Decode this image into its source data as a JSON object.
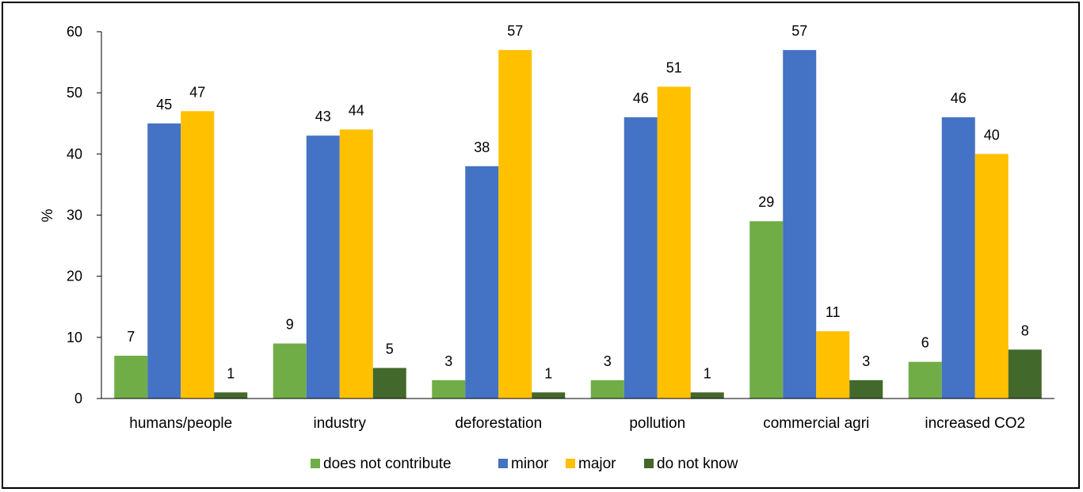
{
  "chart_data": {
    "type": "bar",
    "title": "",
    "xlabel": "",
    "ylabel": "%",
    "ylim": [
      0,
      60
    ],
    "yticks": [
      0,
      10,
      20,
      30,
      40,
      50,
      60
    ],
    "grid": false,
    "legend_position": "bottom",
    "categories": [
      "humans/people",
      "industry",
      "deforestation",
      "pollution",
      "commercial agri",
      "increased CO2"
    ],
    "series": [
      {
        "name": "does not contribute",
        "color": "#70ad47",
        "values": [
          7,
          9,
          3,
          3,
          29,
          6
        ]
      },
      {
        "name": "minor",
        "color": "#4472c4",
        "values": [
          45,
          43,
          38,
          46,
          57,
          46
        ]
      },
      {
        "name": "major",
        "color": "#ffc000",
        "values": [
          47,
          44,
          57,
          51,
          11,
          40
        ]
      },
      {
        "name": "do not know",
        "color": "#43682b",
        "values": [
          1,
          5,
          1,
          1,
          3,
          8
        ]
      }
    ]
  }
}
